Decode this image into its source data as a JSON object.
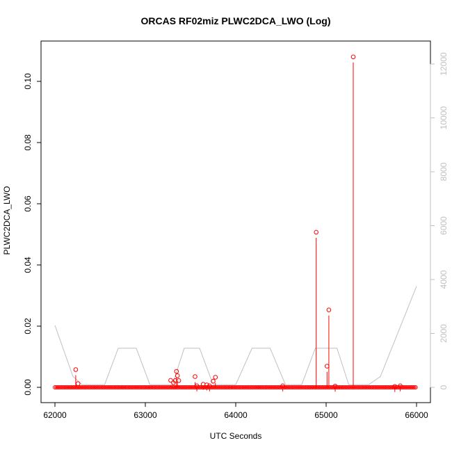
{
  "chart_data": {
    "type": "line",
    "title": "ORCAS RF02miz PLWC2DCA_LWO (Log)",
    "xlabel": "UTC Seconds",
    "ylabel": "PLWC2DCA_LWO",
    "xlim": [
      62000,
      66000
    ],
    "ylim": [
      0,
      0.11
    ],
    "y2lim": [
      0,
      12500
    ],
    "xticks": [
      62000,
      63000,
      64000,
      65000,
      66000
    ],
    "yticks": [
      0.0,
      0.02,
      0.04,
      0.06,
      0.08,
      0.1
    ],
    "ytick_labels": [
      "0.00",
      "0.02",
      "0.04",
      "0.06",
      "0.08",
      "0.10"
    ],
    "y2ticks": [
      0,
      2000,
      4000,
      6000,
      8000,
      10000,
      12000
    ],
    "series": [
      {
        "color": "#ff0000",
        "style": "line-with-circles",
        "baseline_range": [
          62000,
          66000
        ],
        "points": [
          [
            62230,
            0.0058
          ],
          [
            62255,
            0.0012
          ],
          [
            63280,
            0.0023
          ],
          [
            63310,
            0.0015
          ],
          [
            63330,
            0.0022
          ],
          [
            63345,
            0.0052
          ],
          [
            63355,
            0.0038
          ],
          [
            63370,
            0.0022
          ],
          [
            63550,
            0.0035
          ],
          [
            63570,
            0.0005
          ],
          [
            63640,
            0.001
          ],
          [
            63680,
            0.0008
          ],
          [
            63710,
            0.0005
          ],
          [
            63750,
            0.002
          ],
          [
            63775,
            0.0033
          ],
          [
            64520,
            0.0005
          ],
          [
            64890,
            0.0507
          ],
          [
            65010,
            0.0069
          ],
          [
            65030,
            0.0253
          ],
          [
            65100,
            0.0004
          ],
          [
            65300,
            0.108
          ],
          [
            65760,
            0.0003
          ],
          [
            65820,
            0.0005
          ]
        ]
      },
      {
        "color": "#c0c0c0",
        "style": "line",
        "axis": "right",
        "x": [
          62000,
          62200,
          62300,
          62550,
          62700,
          62900,
          63050,
          63300,
          63430,
          63600,
          63750,
          64000,
          64180,
          64380,
          64550,
          64730,
          64880,
          65120,
          65250,
          65470,
          65600,
          66000
        ],
        "values": [
          2300,
          400,
          100,
          100,
          1450,
          1450,
          100,
          100,
          1450,
          1450,
          100,
          100,
          1450,
          1450,
          100,
          100,
          1450,
          1450,
          100,
          100,
          400,
          3750
        ]
      }
    ]
  }
}
